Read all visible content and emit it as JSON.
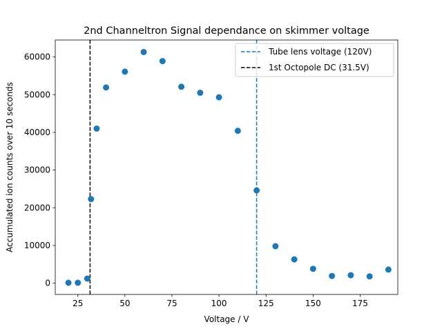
{
  "chart_data": {
    "type": "scatter",
    "title": "2nd Channeltron Signal dependance on skimmer voltage",
    "xlabel": "Voltage / V",
    "ylabel": "Accumulated ion counts over 10 seconds",
    "xlim": [
      13,
      195
    ],
    "ylim": [
      -3000,
      64500
    ],
    "xticks": [
      25,
      50,
      75,
      100,
      125,
      150,
      175
    ],
    "yticks": [
      0,
      10000,
      20000,
      30000,
      40000,
      50000,
      60000
    ],
    "grid": false,
    "legend_position": "top-right",
    "series": [
      {
        "color": "#1f77b4",
        "points": [
          {
            "x": 20,
            "y": 100
          },
          {
            "x": 25,
            "y": 100
          },
          {
            "x": 30,
            "y": 1200
          },
          {
            "x": 32,
            "y": 22300
          },
          {
            "x": 35,
            "y": 41000
          },
          {
            "x": 40,
            "y": 51900
          },
          {
            "x": 50,
            "y": 56100
          },
          {
            "x": 60,
            "y": 61300
          },
          {
            "x": 70,
            "y": 58900
          },
          {
            "x": 80,
            "y": 52100
          },
          {
            "x": 90,
            "y": 50500
          },
          {
            "x": 100,
            "y": 49300
          },
          {
            "x": 110,
            "y": 40400
          },
          {
            "x": 120,
            "y": 24600
          },
          {
            "x": 130,
            "y": 9800
          },
          {
            "x": 140,
            "y": 6300
          },
          {
            "x": 150,
            "y": 3800
          },
          {
            "x": 160,
            "y": 1900
          },
          {
            "x": 170,
            "y": 2100
          },
          {
            "x": 180,
            "y": 1800
          },
          {
            "x": 190,
            "y": 3600
          }
        ]
      }
    ],
    "vlines": [
      {
        "name": "Tube lens voltage (120V)",
        "x": 120,
        "color": "#1f77b4"
      },
      {
        "name": "1st Octopole DC (31.5V)",
        "x": 31.5,
        "color": "#000000"
      }
    ]
  }
}
